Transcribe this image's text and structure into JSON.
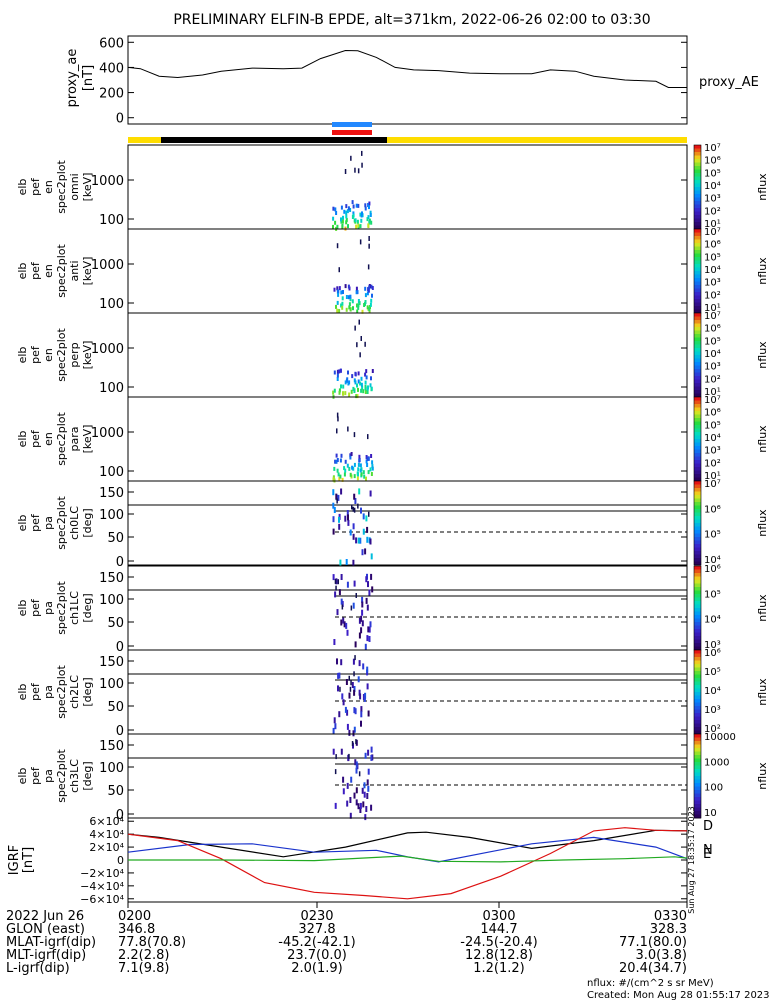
{
  "title": "PRELIMINARY ELFIN-B EPDE, alt=371km, 2022-06-26 02:00 to 03:30",
  "colors": {
    "sunlight_bar": "#ffdd00",
    "shadow_bar": "#000000",
    "pass_bar_top": "#2288ff",
    "pass_bar_bottom": "#ee1111",
    "ae_line": "#000000",
    "igrf_x": "#000000",
    "igrf_y": "#1a33cc",
    "igrf_z": "#dd1111",
    "igrf_green": "#22aa22"
  },
  "chart_data": [
    {
      "type": "line",
      "ylabel": [
        "proxy_ae",
        "[nT]"
      ],
      "series_label": "proxy_AE",
      "ylim": [
        -50,
        650
      ],
      "yticks": [
        "600",
        "400",
        "200",
        "0"
      ],
      "yticks_values": [
        600,
        400,
        200,
        0
      ],
      "xlim_minutes": [
        0,
        90
      ],
      "series": [
        {
          "x": [
            0,
            2,
            5,
            8,
            12,
            15,
            20,
            25,
            28,
            31,
            35,
            37,
            40,
            43,
            46,
            50,
            55,
            60,
            65,
            68,
            72,
            75,
            80,
            85,
            87,
            90
          ],
          "y": [
            400,
            390,
            330,
            320,
            340,
            370,
            395,
            390,
            395,
            470,
            535,
            532,
            480,
            400,
            380,
            375,
            355,
            350,
            350,
            380,
            370,
            330,
            300,
            290,
            240,
            240
          ]
        }
      ]
    },
    {
      "type": "heatmap",
      "name": "spectrogram panels",
      "panels": [
        {
          "ylabel": [
            "elb",
            "pef",
            "en",
            "spec2plot",
            "omni",
            "[keV]"
          ],
          "yticks": [
            "1000",
            "100"
          ],
          "zlabel": "nflux",
          "ztop": "10⁷",
          "zbottom": "10¹"
        },
        {
          "ylabel": [
            "elb",
            "pef",
            "en",
            "spec2plot",
            "anti",
            "[keV]"
          ],
          "yticks": [
            "1000",
            "100"
          ],
          "zlabel": "nflux",
          "ztop": "10⁷",
          "zbottom": "10¹"
        },
        {
          "ylabel": [
            "elb",
            "pef",
            "en",
            "spec2plot",
            "perp",
            "[keV]"
          ],
          "yticks": [
            "1000",
            "100"
          ],
          "zlabel": "nflux",
          "ztop": "10⁷",
          "zbottom": "10¹"
        },
        {
          "ylabel": [
            "elb",
            "pef",
            "en",
            "spec2plot",
            "para",
            "[keV]"
          ],
          "yticks": [
            "1000",
            "100"
          ],
          "zlabel": "nflux",
          "ztop": "10⁷",
          "zbottom": "10¹"
        },
        {
          "ylabel": [
            "elb",
            "pef",
            "pa",
            "spec2plot",
            "ch0LC",
            "[deg]"
          ],
          "yticks": [
            "150",
            "100",
            "50",
            "0"
          ],
          "zlabel": "nflux",
          "ztop": "10⁷",
          "zbottom": "10⁴"
        },
        {
          "ylabel": [
            "elb",
            "pef",
            "pa",
            "spec2plot",
            "ch1LC",
            "[deg]"
          ],
          "yticks": [
            "150",
            "100",
            "50",
            "0"
          ],
          "zlabel": "nflux",
          "ztop": "10⁶",
          "zbottom": "10³"
        },
        {
          "ylabel": [
            "elb",
            "pef",
            "pa",
            "spec2plot",
            "ch2LC",
            "[deg]"
          ],
          "yticks": [
            "150",
            "100",
            "50",
            "0"
          ],
          "zlabel": "nflux",
          "ztop": "10⁶",
          "zbottom": "10²"
        },
        {
          "ylabel": [
            "elb",
            "pef",
            "pa",
            "spec2plot",
            "ch3LC",
            "[deg]"
          ],
          "yticks": [
            "150",
            "100",
            "50",
            "0"
          ],
          "zlabel": "nflux",
          "ztop": "10000",
          "zbottom": "10"
        }
      ],
      "colorbar_ticks_energy": [
        "10⁷",
        "10⁶",
        "10⁵",
        "10⁴",
        "10³",
        "10²",
        "10¹"
      ],
      "colorbar_ticks_pa": [
        [
          "10⁷",
          "10⁶",
          "10⁵",
          "10⁴"
        ],
        [
          "10⁶",
          "10⁵",
          "10⁴",
          "10³"
        ],
        [
          "10⁶",
          "10⁵",
          "10⁴",
          "10³",
          "10²"
        ],
        [
          "10000",
          "1000",
          "100",
          "10"
        ]
      ]
    },
    {
      "type": "line",
      "ylabel": [
        "IGRF",
        "[nT]"
      ],
      "yticks": [
        "6×10⁴",
        "4×10⁴",
        "2×10⁴",
        "0",
        "−2×10⁴",
        "−4×10⁴",
        "−6×10⁴"
      ],
      "yticks_values": [
        60000,
        40000,
        20000,
        0,
        -20000,
        -40000,
        -60000
      ],
      "ylim": [
        -65000,
        65000
      ],
      "xlim_minutes": [
        0,
        90
      ],
      "legend": [
        "D",
        "E",
        "N"
      ],
      "series": [
        {
          "key": "x",
          "x": [
            0,
            5,
            15,
            25,
            35,
            45,
            48,
            55,
            65,
            75,
            85,
            90
          ],
          "y": [
            40000,
            35000,
            20000,
            5000,
            20000,
            42000,
            43000,
            35000,
            18000,
            30000,
            46000,
            45000
          ]
        },
        {
          "key": "y",
          "x": [
            0,
            10,
            20,
            30,
            40,
            45,
            50,
            58,
            65,
            75,
            85,
            90
          ],
          "y": [
            12000,
            24000,
            25000,
            12000,
            15000,
            5000,
            -3000,
            12000,
            25000,
            35000,
            20000,
            2000
          ]
        },
        {
          "key": "z",
          "x": [
            0,
            8,
            15,
            22,
            30,
            38,
            45,
            52,
            60,
            68,
            75,
            80,
            85,
            90
          ],
          "y": [
            40000,
            30000,
            2000,
            -35000,
            -50000,
            -55000,
            -60000,
            -52000,
            -25000,
            10000,
            45000,
            50000,
            46000,
            45000
          ]
        },
        {
          "key": "green",
          "x": [
            0,
            15,
            30,
            40,
            44,
            50,
            60,
            70,
            80,
            88,
            90
          ],
          "y": [
            0,
            0,
            -1000,
            4000,
            6000,
            -2000,
            -3000,
            0,
            2000,
            5000,
            3000
          ]
        }
      ]
    }
  ],
  "ephemeris": {
    "rows": [
      {
        "label": "2022 Jun 26",
        "vals": [
          "0200",
          "0230",
          "0300",
          "0330"
        ]
      },
      {
        "label": "GLON (east)",
        "vals": [
          "346.8",
          "327.8",
          "144.7",
          "328.3"
        ]
      },
      {
        "label": "MLAT-igrf(dip)",
        "vals": [
          "77.8(70.8)",
          "-45.2(-42.1)",
          "-24.5(-20.4)",
          "77.1(80.0)"
        ]
      },
      {
        "label": "MLT-igrf(dip)",
        "vals": [
          "2.2(2.8)",
          "23.7(0.0)",
          "12.8(12.8)",
          "3.0(3.8)"
        ]
      },
      {
        "label": "L-igrf(dip)",
        "vals": [
          "7.1(9.8)",
          "2.0(1.9)",
          "1.2(1.2)",
          "20.4(34.7)"
        ]
      }
    ]
  },
  "footer": {
    "units": "nflux: #/(cm^2 s sr MeV)",
    "created": "Created: Mon Aug 28 01:55:17 2023",
    "vertical": "Sun Aug 27 18:35:17 2023"
  }
}
